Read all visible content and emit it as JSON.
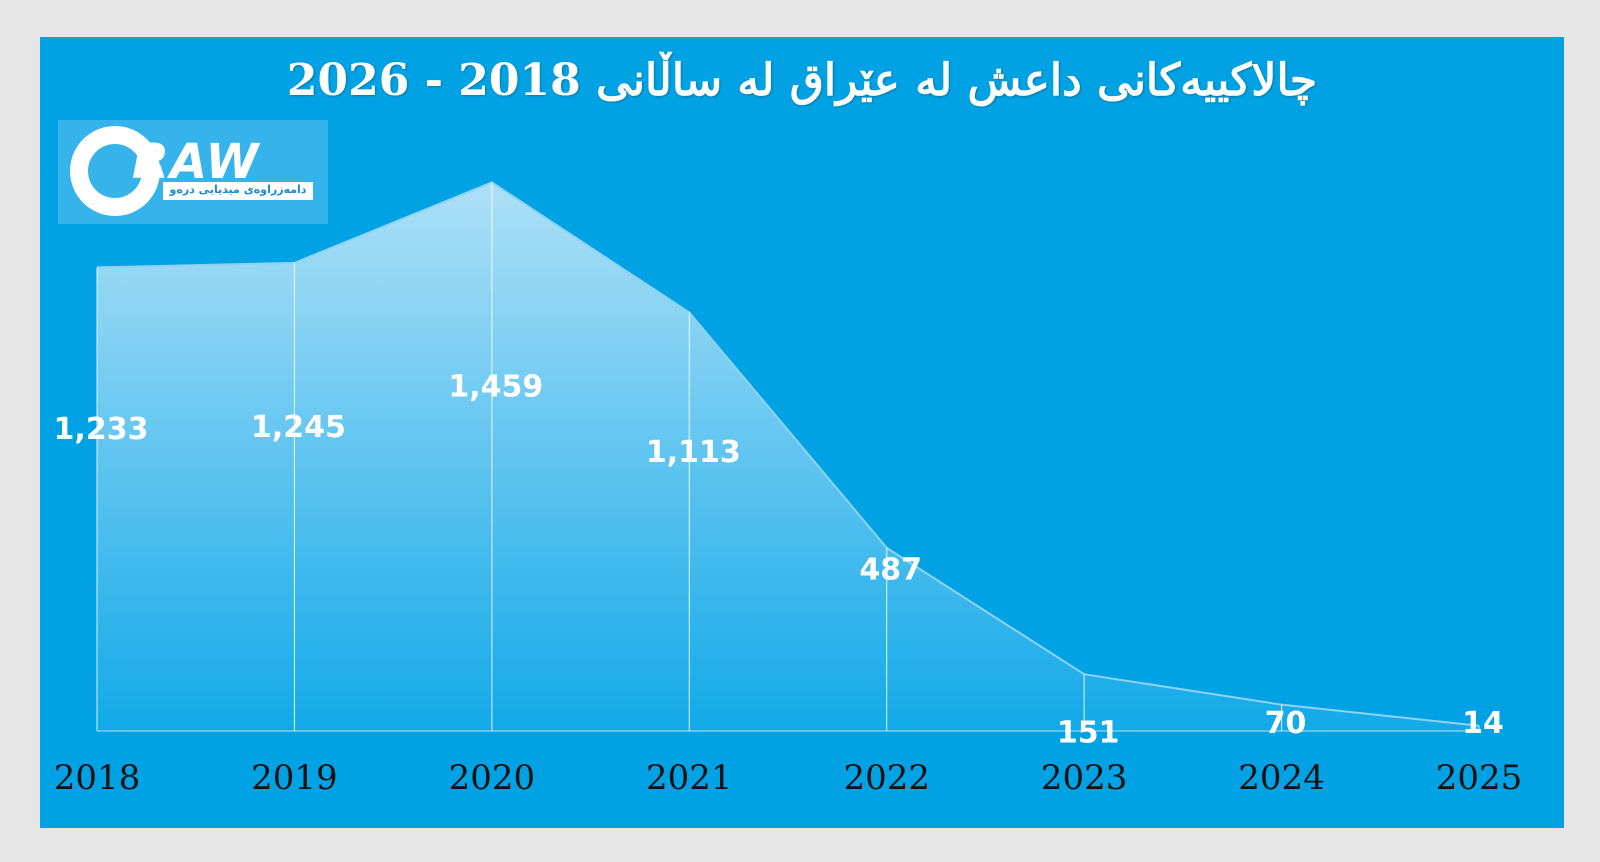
{
  "title": "چالاکییەکانی داعش لە عێراق لە ساڵانی 2018 - 2026",
  "logo": {
    "word": "RAW",
    "subtitle": "دامەزراوەی میدیایی درەو"
  },
  "colors": {
    "background": "#00a2e3",
    "page": "#e6e6e6",
    "area_top": "#aee0f7",
    "area_bottom": "#12a9e8",
    "text": "#ffffff",
    "axis_text": "#111111"
  },
  "chart_data": {
    "type": "area",
    "title": "چالاکییەکانی داعش لە عێراق لە ساڵانی 2018 - 2026",
    "categories": [
      "2018",
      "2019",
      "2020",
      "2021",
      "2022",
      "2023",
      "2024",
      "2025"
    ],
    "values": [
      1233,
      1245,
      1459,
      1113,
      487,
      151,
      70,
      14
    ],
    "labels": [
      "1,233",
      "1,245",
      "1,459",
      "1,113",
      "487",
      "151",
      "70",
      "14"
    ],
    "ylim": [
      0,
      1500
    ],
    "grid": false,
    "legend": "none"
  }
}
